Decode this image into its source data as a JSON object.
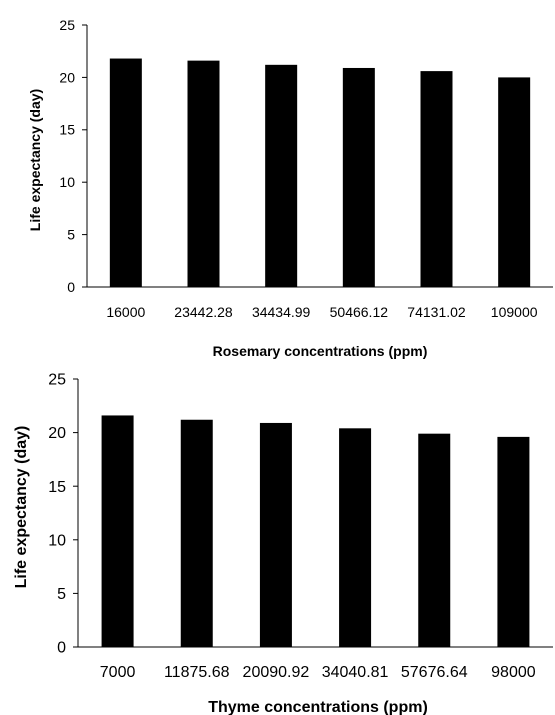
{
  "chart_data": [
    {
      "type": "bar",
      "categories": [
        "16000",
        "23442.28",
        "34434.99",
        "50466.12",
        "74131.02",
        "109000"
      ],
      "values": [
        21.8,
        21.6,
        21.2,
        20.9,
        20.6,
        20.0
      ],
      "title": "",
      "xlabel": "Rosemary concentrations (ppm)",
      "ylabel": "Life expectancy (day)",
      "ylim": [
        0,
        25
      ],
      "yticks": [
        "0",
        "5",
        "10",
        "15",
        "20",
        "25"
      ],
      "bar_color": "#000000",
      "grid": false,
      "legend": "none"
    },
    {
      "type": "bar",
      "categories": [
        "7000",
        "11875.68",
        "20090.92",
        "34040.81",
        "57676.64",
        "98000"
      ],
      "values": [
        21.6,
        21.2,
        20.9,
        20.4,
        19.9,
        19.6
      ],
      "title": "",
      "xlabel": "Thyme concentrations (ppm)",
      "ylabel": "Life expectancy (day)",
      "ylim": [
        0,
        25
      ],
      "yticks": [
        "0",
        "5",
        "10",
        "15",
        "20",
        "25"
      ],
      "bar_color": "#000000",
      "grid": false,
      "legend": "none"
    }
  ]
}
